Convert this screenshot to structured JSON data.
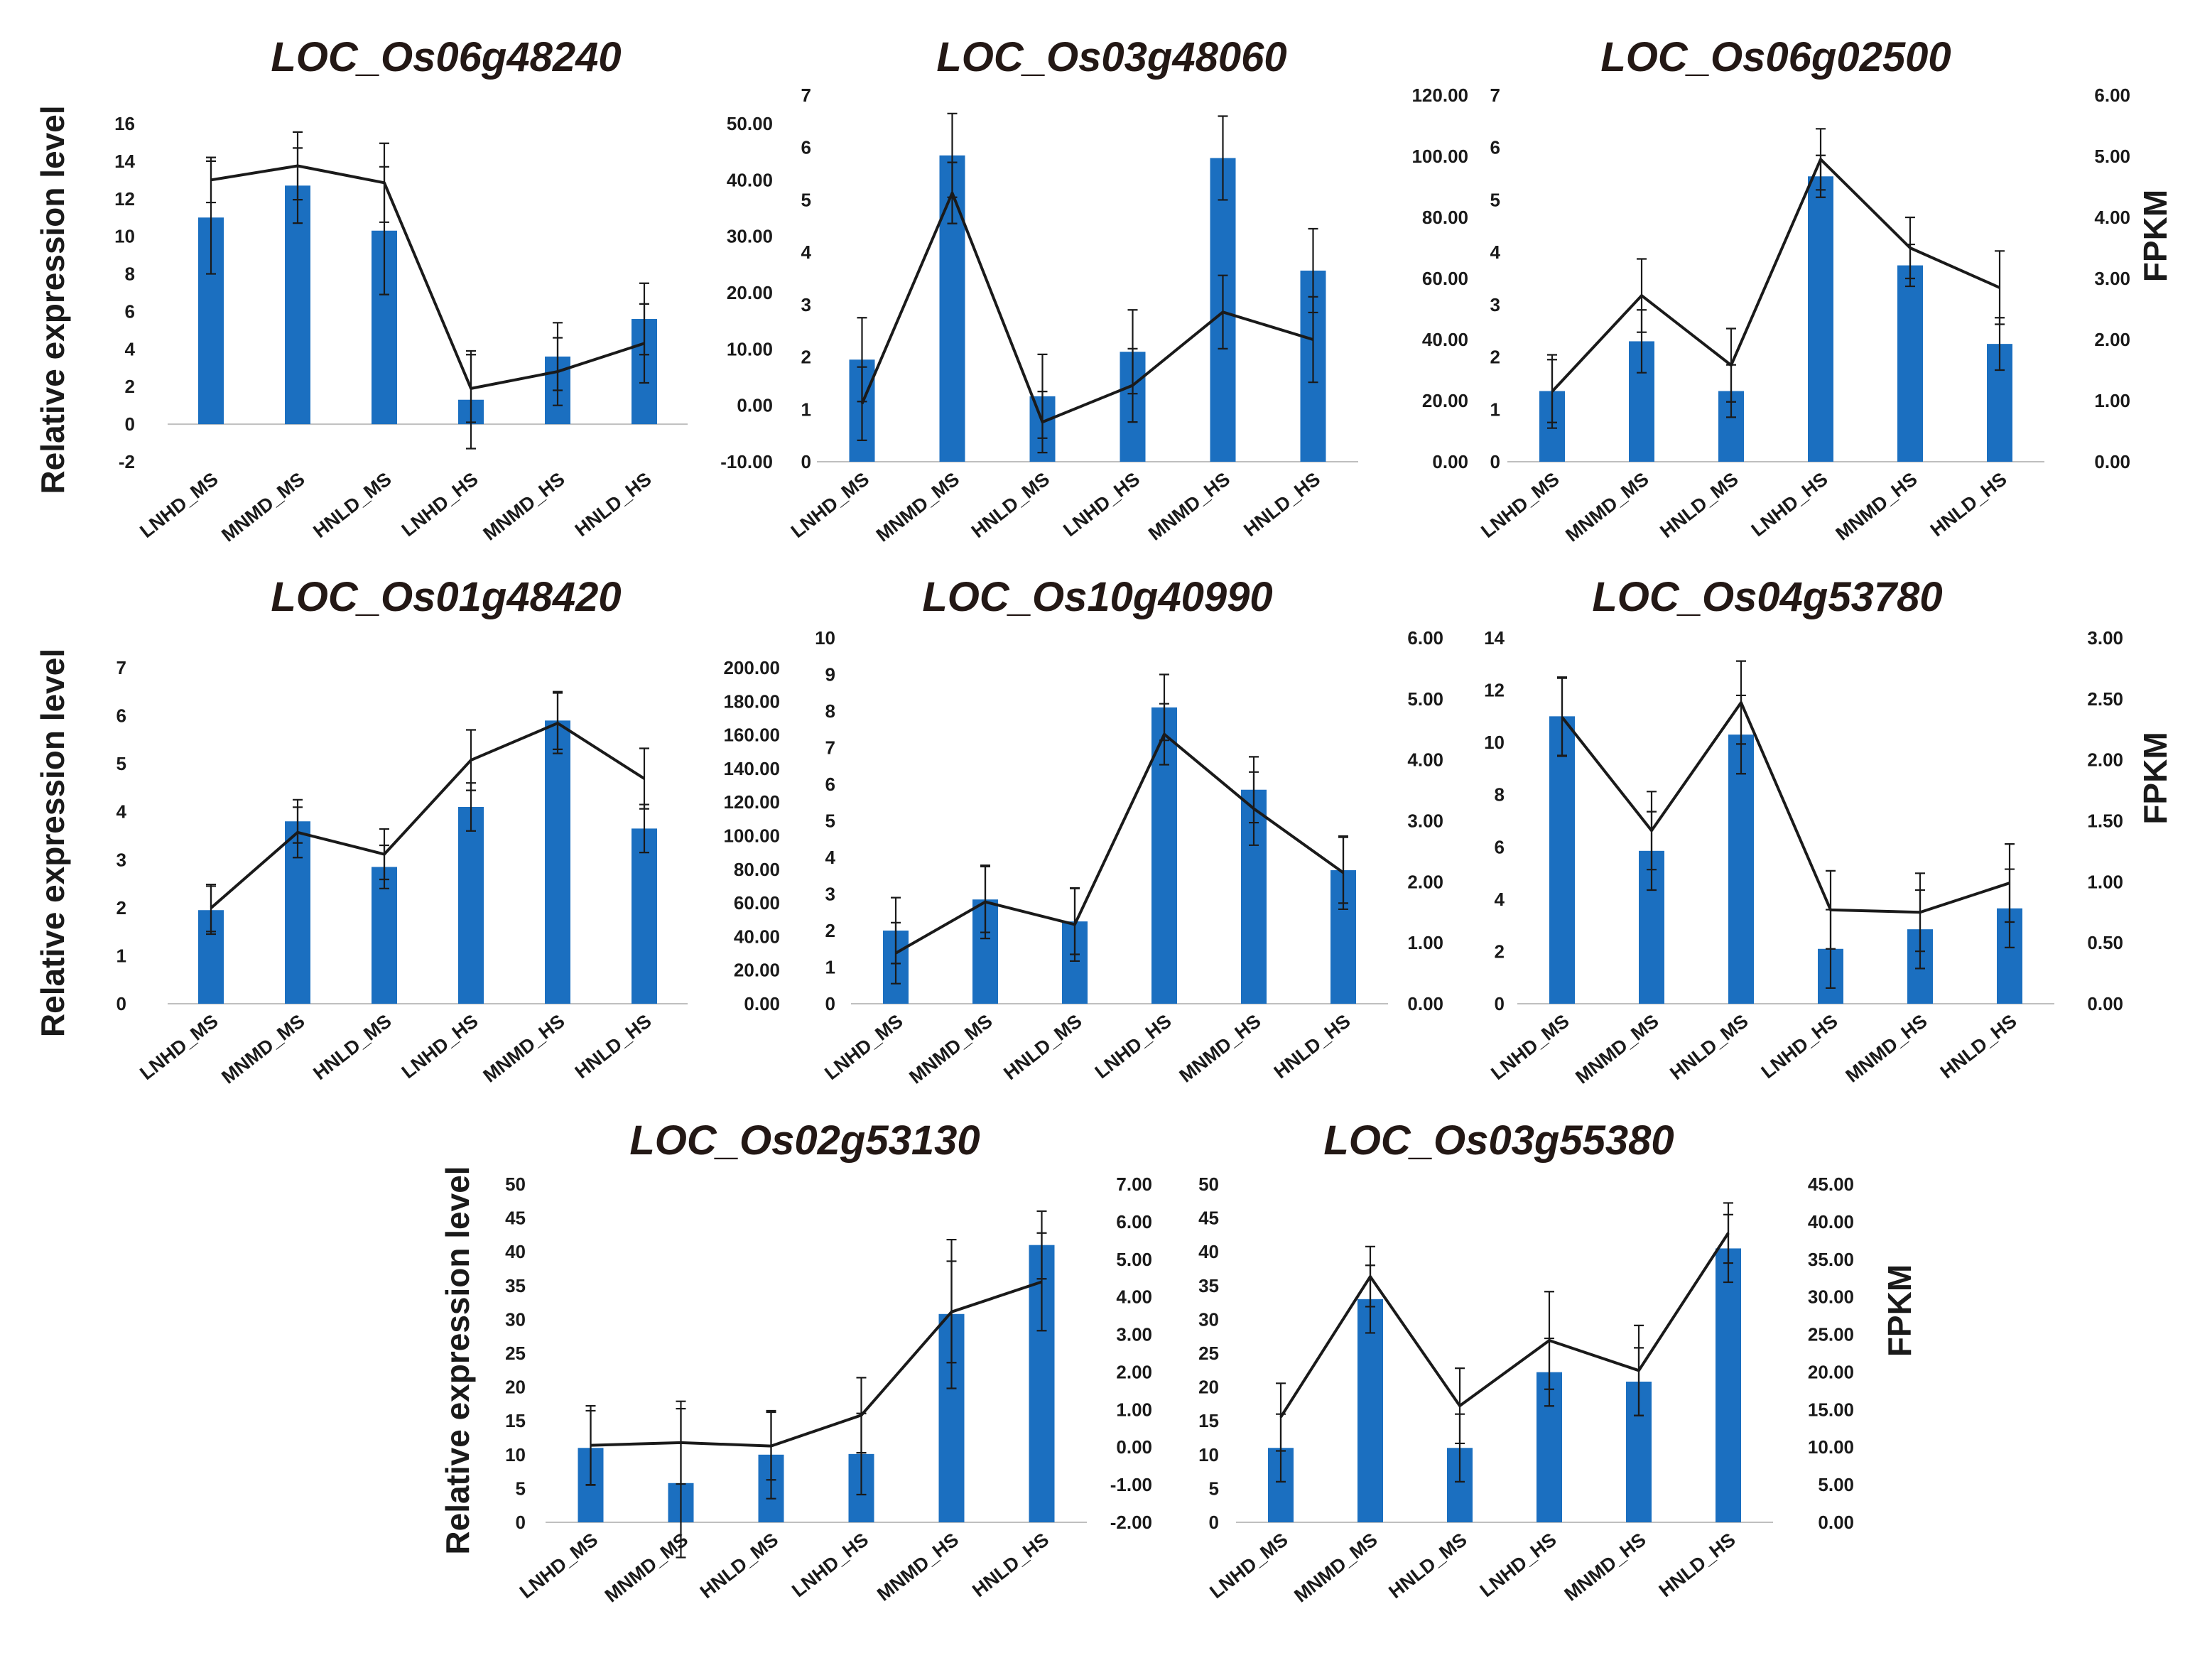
{
  "chart_data": [
    {
      "type": "bar+line",
      "title": "LOC_Os06g48240",
      "categories": [
        "LNHD_MS",
        "MNMD_MS",
        "HNLD_MS",
        "LNHD_HS",
        "MNMD_HS",
        "HNLD_HS"
      ],
      "ylabel": "Relative expression level",
      "y2label": "",
      "ylim": [
        -2,
        16
      ],
      "yticks": [
        "-2",
        "0",
        "2",
        "4",
        "6",
        "8",
        "10",
        "12",
        "14",
        "16"
      ],
      "y2lim": [
        -10,
        50
      ],
      "y2ticks": [
        "-10.00",
        "0.00",
        "10.00",
        "20.00",
        "30.00",
        "40.00",
        "50.00"
      ],
      "bars": {
        "name": "Relative expression level",
        "values": [
          11.0,
          12.7,
          10.3,
          1.3,
          3.6,
          5.6
        ],
        "errors": [
          3.0,
          2.0,
          3.4,
          2.6,
          1.8,
          1.9
        ]
      },
      "line": {
        "name": "FPKM",
        "values": [
          40.0,
          42.5,
          39.5,
          3.0,
          6.0,
          11.0
        ],
        "errors": [
          4.0,
          6.0,
          7.0,
          6.0,
          6.0,
          7.0
        ]
      }
    },
    {
      "type": "bar+line",
      "title": "LOC_Os03g48060",
      "categories": [
        "LNHD_MS",
        "MNMD_MS",
        "HNLD_MS",
        "LNHD_HS",
        "MNMD_HS",
        "HNLD_HS"
      ],
      "ylabel": "",
      "y2label": "",
      "ylim": [
        0,
        7
      ],
      "yticks": [
        "0",
        "1",
        "2",
        "3",
        "4",
        "5",
        "6",
        "7"
      ],
      "y2lim": [
        0,
        120
      ],
      "y2ticks": [
        "0.00",
        "20.00",
        "40.00",
        "60.00",
        "80.00",
        "100.00",
        "120.00"
      ],
      "bars": {
        "name": "Relative expression level",
        "values": [
          1.95,
          5.85,
          1.25,
          2.1,
          5.8,
          3.65
        ],
        "errors": [
          0.8,
          0.8,
          0.8,
          0.8,
          0.8,
          0.8
        ]
      },
      "line": {
        "name": "FPKM",
        "values": [
          19.0,
          88.0,
          13.0,
          25.0,
          49.0,
          40.0
        ],
        "errors": [
          12.0,
          10.0,
          10.0,
          12.0,
          12.0,
          14.0
        ]
      }
    },
    {
      "type": "bar+line",
      "title": "LOC_Os06g02500",
      "categories": [
        "LNHD_MS",
        "MNMD_MS",
        "HNLD_MS",
        "LNHD_HS",
        "MNMD_HS",
        "HNLD_HS"
      ],
      "ylabel": "",
      "y2label": "FPKM",
      "ylim": [
        0,
        7
      ],
      "yticks": [
        "0",
        "1",
        "2",
        "3",
        "4",
        "5",
        "6",
        "7"
      ],
      "y2lim": [
        0,
        6
      ],
      "y2ticks": [
        "0.00",
        "1.00",
        "2.00",
        "3.00",
        "4.00",
        "5.00",
        "6.00"
      ],
      "bars": {
        "name": "Relative expression level",
        "values": [
          1.35,
          2.3,
          1.35,
          5.45,
          3.75,
          2.25
        ],
        "errors": [
          0.6,
          0.6,
          0.5,
          0.4,
          0.4,
          0.5
        ]
      },
      "line": {
        "name": "FPKM",
        "values": [
          1.15,
          2.72,
          1.58,
          4.95,
          3.5,
          2.85
        ],
        "errors": [
          0.6,
          0.6,
          0.6,
          0.5,
          0.5,
          0.6
        ]
      }
    },
    {
      "type": "bar+line",
      "title": "LOC_Os01g48420",
      "categories": [
        "LNHD_MS",
        "MNMD_MS",
        "HNLD_MS",
        "LNHD_HS",
        "MNMD_HS",
        "HNLD_HS"
      ],
      "ylabel": "Relative expression level",
      "y2label": "",
      "ylim": [
        0,
        7
      ],
      "yticks": [
        "0",
        "1",
        "2",
        "3",
        "4",
        "5",
        "6",
        "7"
      ],
      "y2lim": [
        0,
        200
      ],
      "y2ticks": [
        "0.00",
        "20.00",
        "40.00",
        "60.00",
        "80.00",
        "100.00",
        "120.00",
        "140.00",
        "160.00",
        "180.00",
        "200.00"
      ],
      "bars": {
        "name": "Relative expression level",
        "values": [
          1.95,
          3.8,
          2.85,
          4.1,
          5.9,
          3.65
        ],
        "errors": [
          0.5,
          0.45,
          0.45,
          0.5,
          0.6,
          0.5
        ]
      },
      "line": {
        "name": "FPKM",
        "values": [
          57.0,
          102.0,
          89.0,
          145.0,
          167.0,
          134.0
        ],
        "errors": [
          14.0,
          15.0,
          15.0,
          18.0,
          18.0,
          18.0
        ]
      }
    },
    {
      "type": "bar+line",
      "title": "LOC_Os10g40990",
      "categories": [
        "LNHD_MS",
        "MNMD_MS",
        "HNLD_MS",
        "LNHD_HS",
        "MNMD_HS",
        "HNLD_HS"
      ],
      "ylabel": "",
      "y2label": "",
      "ylim": [
        0,
        10
      ],
      "yticks": [
        "0",
        "1",
        "2",
        "3",
        "4",
        "5",
        "6",
        "7",
        "8",
        "9",
        "10"
      ],
      "y2lim": [
        0,
        6
      ],
      "y2ticks": [
        "0.00",
        "1.00",
        "2.00",
        "3.00",
        "4.00",
        "5.00",
        "6.00"
      ],
      "bars": {
        "name": "Relative expression level",
        "values": [
          2.0,
          2.85,
          2.25,
          8.1,
          5.85,
          3.65
        ],
        "errors": [
          0.9,
          0.9,
          0.9,
          0.9,
          0.9,
          0.9
        ]
      },
      "line": {
        "name": "FPKM",
        "values": [
          0.83,
          1.67,
          1.3,
          4.42,
          3.2,
          2.15
        ],
        "errors": [
          0.5,
          0.6,
          0.6,
          0.5,
          0.6,
          0.6
        ]
      }
    },
    {
      "type": "bar+line",
      "title": "LOC_Os04g53780",
      "categories": [
        "LNHD_MS",
        "MNMD_MS",
        "HNLD_MS",
        "LNHD_HS",
        "MNMD_HS",
        "HNLD_HS"
      ],
      "ylabel": "",
      "y2label": "FPKM",
      "ylim": [
        0,
        14
      ],
      "yticks": [
        "0",
        "2",
        "4",
        "6",
        "8",
        "10",
        "12",
        "14"
      ],
      "y2lim": [
        0,
        3
      ],
      "y2ticks": [
        "0.00",
        "0.50",
        "1.00",
        "1.50",
        "2.00",
        "2.50",
        "3.00"
      ],
      "bars": {
        "name": "Relative expression level",
        "values": [
          11.0,
          5.85,
          10.3,
          2.1,
          2.85,
          3.65
        ],
        "errors": [
          1.5,
          1.5,
          1.5,
          1.5,
          1.5,
          1.5
        ]
      },
      "line": {
        "name": "FPKM",
        "values": [
          2.35,
          1.42,
          2.47,
          0.77,
          0.75,
          0.99
        ],
        "errors": [
          0.32,
          0.32,
          0.34,
          0.32,
          0.32,
          0.32
        ]
      }
    },
    {
      "type": "bar+line",
      "title": "LOC_Os02g53130",
      "categories": [
        "LNHD_MS",
        "MNMD_MS",
        "HNLD_MS",
        "LNHD_HS",
        "MNMD_HS",
        "HNLD_HS"
      ],
      "ylabel": "Relative expression level",
      "y2label": "",
      "ylim": [
        0,
        50
      ],
      "yticks": [
        "0",
        "5",
        "10",
        "15",
        "20",
        "25",
        "30",
        "35",
        "40",
        "45",
        "50"
      ],
      "y2lim": [
        -2,
        7
      ],
      "y2ticks": [
        "-2.00",
        "-1.00",
        "0.00",
        "1.00",
        "2.00",
        "3.00",
        "4.00",
        "5.00",
        "6.00",
        "7.00"
      ],
      "bars": {
        "name": "Relative expression level",
        "values": [
          11.0,
          5.8,
          10.0,
          10.1,
          30.8,
          41.0
        ],
        "errors": [
          5.5,
          11.0,
          6.5,
          6.0,
          11.0,
          5.0
        ]
      },
      "line": {
        "name": "FPKM",
        "values": [
          0.05,
          0.12,
          0.03,
          0.85,
          3.6,
          4.4
        ],
        "errors": [
          1.05,
          1.1,
          0.9,
          1.0,
          1.35,
          1.3
        ]
      }
    },
    {
      "type": "bar+line",
      "title": "LOC_Os03g55380",
      "categories": [
        "LNHD_MS",
        "MNMD_MS",
        "HNLD_MS",
        "LNHD_HS",
        "MNMD_HS",
        "HNLD_HS"
      ],
      "ylabel": "",
      "y2label": "FPKM",
      "ylim": [
        0,
        50
      ],
      "yticks": [
        "0",
        "5",
        "10",
        "15",
        "20",
        "25",
        "30",
        "35",
        "40",
        "45",
        "50"
      ],
      "y2lim": [
        0,
        45
      ],
      "y2ticks": [
        "0.00",
        "5.00",
        "10.00",
        "15.00",
        "20.00",
        "25.00",
        "30.00",
        "35.00",
        "40.00",
        "45.00"
      ],
      "bars": {
        "name": "Relative expression level",
        "values": [
          11.0,
          33.0,
          11.0,
          22.2,
          20.8,
          40.5
        ],
        "errors": [
          5.0,
          5.0,
          5.0,
          5.0,
          5.0,
          5.0
        ]
      },
      "line": {
        "name": "FPKM",
        "values": [
          14.0,
          32.7,
          15.5,
          24.2,
          20.2,
          38.5
        ],
        "errors": [
          4.5,
          4.0,
          5.0,
          6.5,
          6.0,
          4.0
        ]
      }
    }
  ],
  "colors": {
    "bar": "#1b6fc0",
    "line": "#1a1a1a",
    "axis": "#bfbfbf",
    "title": "#231815"
  }
}
